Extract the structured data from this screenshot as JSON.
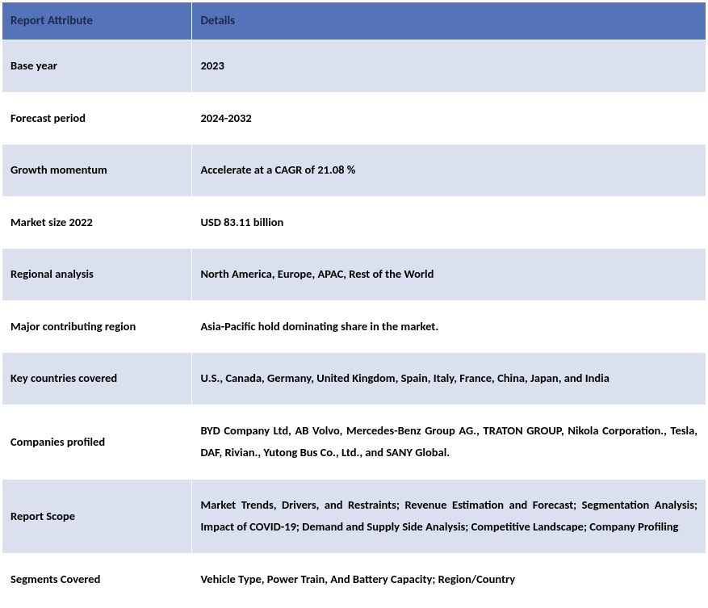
{
  "header": {
    "col1": "Report Attribute",
    "col2": "Details"
  },
  "colors": {
    "header_bg": "#5573b8",
    "header_text": "#1c2a4a",
    "row_alt_bg": "#dbe0ef",
    "row_white_bg": "#ffffff",
    "cell_text": "#000000",
    "border": "#ffffff"
  },
  "rows": [
    {
      "attr": "Base year",
      "detail": "2023",
      "alt": true
    },
    {
      "attr": "Forecast period",
      "detail": "2024-2032",
      "alt": false
    },
    {
      "attr": "Growth momentum",
      "detail": "Accelerate at a CAGR of 21.08 %",
      "alt": true
    },
    {
      "attr": "Market size 2022",
      "detail": "USD 83.11 billion",
      "alt": false
    },
    {
      "attr": "Regional analysis",
      "detail": "North America, Europe, APAC, Rest of the World",
      "alt": true
    },
    {
      "attr": "Major contributing region",
      "detail": "Asia-Pacific hold dominating share in the market.",
      "alt": false
    },
    {
      "attr": "Key countries covered",
      "detail": "U.S., Canada, Germany, United Kingdom, Spain, Italy, France, China, Japan, and India",
      "alt": true
    },
    {
      "attr": "Companies profiled",
      "detail": "BYD Company Ltd, AB Volvo, Mercedes-Benz Group AG., TRATON GROUP, Nikola Corporation., Tesla, DAF, Rivian., Yutong Bus Co., Ltd., and SANY Global.",
      "alt": false
    },
    {
      "attr": "Report Scope",
      "detail": "Market Trends, Drivers, and Restraints; Revenue Estimation and Forecast; Segmentation Analysis; Impact of COVID-19; Demand and Supply Side Analysis; Competitive Landscape; Company Profiling",
      "alt": true
    },
    {
      "attr": "Segments Covered",
      "detail": "Vehicle Type, Power Train, And Battery Capacity; Region/Country",
      "alt": false
    }
  ]
}
